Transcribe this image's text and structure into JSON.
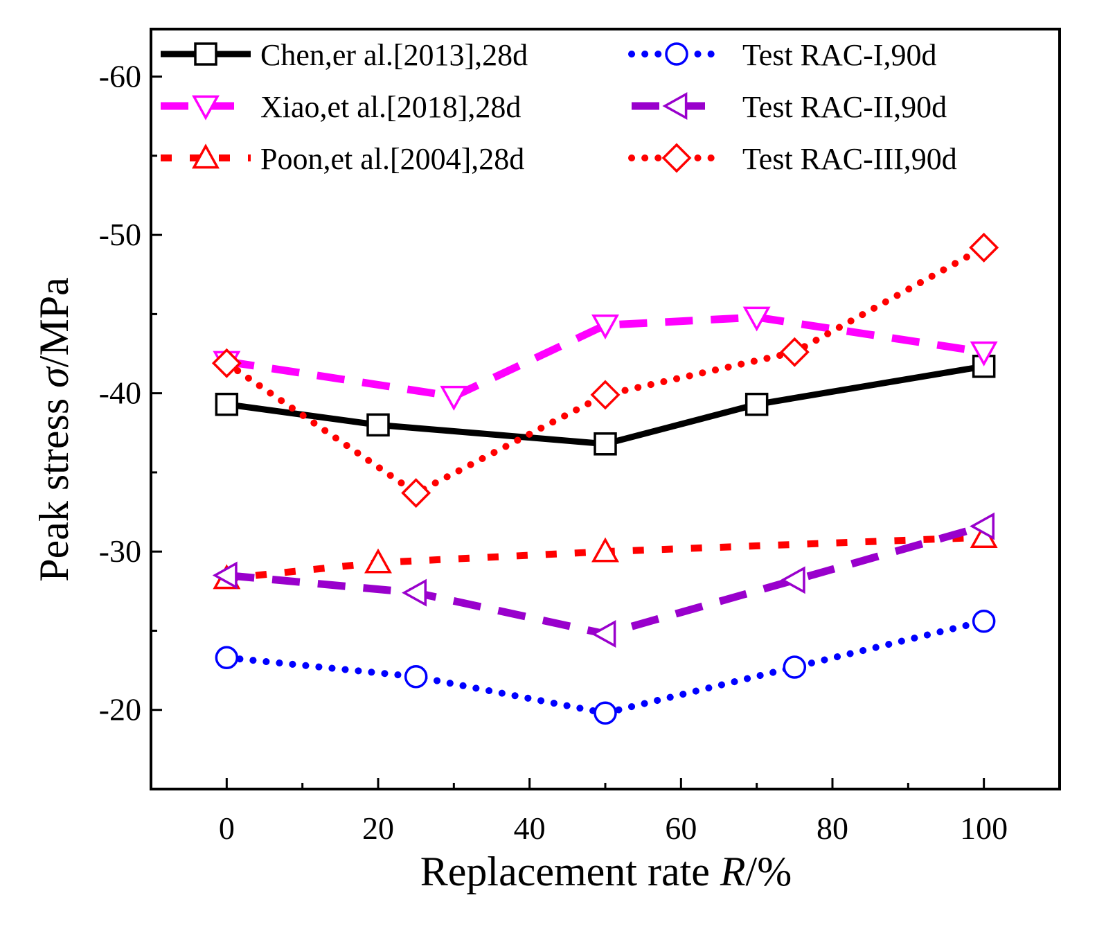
{
  "chart_data": {
    "type": "line",
    "title": "",
    "xlabel": {
      "prefix": "Replacement rate ",
      "symbol": "R",
      "suffix": "/%"
    },
    "ylabel": {
      "prefix": "Peak stress  ",
      "symbol": "σ",
      "suffix": "/MPa"
    },
    "xlim": [
      -10,
      110
    ],
    "ylim": [
      -15,
      -63
    ],
    "x_ticks": [
      0,
      20,
      40,
      60,
      80,
      100
    ],
    "x_tick_labels": [
      "0",
      "20",
      "40",
      "60",
      "80",
      "100"
    ],
    "y_ticks": [
      -20,
      -30,
      -40,
      -50,
      -60
    ],
    "y_tick_labels": [
      "-20",
      "-30",
      "-40",
      "-50",
      "-60"
    ],
    "grid": false,
    "legend_position": "top",
    "series": [
      {
        "name": "Chen,er al.[2013],28d",
        "color": "#000000",
        "marker": "square",
        "dash": "solid",
        "x": [
          0,
          20,
          50,
          70,
          100
        ],
        "y": [
          -39.3,
          -38.0,
          -36.8,
          -39.3,
          -41.7
        ]
      },
      {
        "name": "Xiao,et al.[2018],28d",
        "color": "#ff00ff",
        "marker": "triangle-down",
        "dash": "long-dash",
        "x": [
          0,
          30,
          50,
          70,
          100
        ],
        "y": [
          -42.0,
          -39.8,
          -44.3,
          -44.8,
          -42.6
        ]
      },
      {
        "name": "Poon,et al.[2004],28d",
        "color": "#ff0000",
        "marker": "triangle-up",
        "dash": "dash",
        "x": [
          0,
          20,
          50,
          100
        ],
        "y": [
          -28.3,
          -29.3,
          -30.0,
          -30.9
        ]
      },
      {
        "name": "Test RAC-I,90d",
        "color": "#0000ff",
        "marker": "circle",
        "dash": "dot",
        "x": [
          0,
          25,
          50,
          75,
          100
        ],
        "y": [
          -23.3,
          -22.1,
          -19.8,
          -22.7,
          -25.6
        ]
      },
      {
        "name": "Test RAC-II,90d",
        "color": "#9900cc",
        "marker": "triangle-left",
        "dash": "long-dash",
        "x": [
          0,
          25,
          50,
          75,
          100
        ],
        "y": [
          -28.5,
          -27.4,
          -24.8,
          -28.2,
          -31.6
        ]
      },
      {
        "name": "Test RAC-III,90d",
        "color": "#ff0000",
        "marker": "diamond",
        "dash": "dot",
        "x": [
          0,
          25,
          50,
          75,
          100
        ],
        "y": [
          -41.9,
          -33.7,
          -39.9,
          -42.6,
          -49.2
        ]
      }
    ]
  }
}
